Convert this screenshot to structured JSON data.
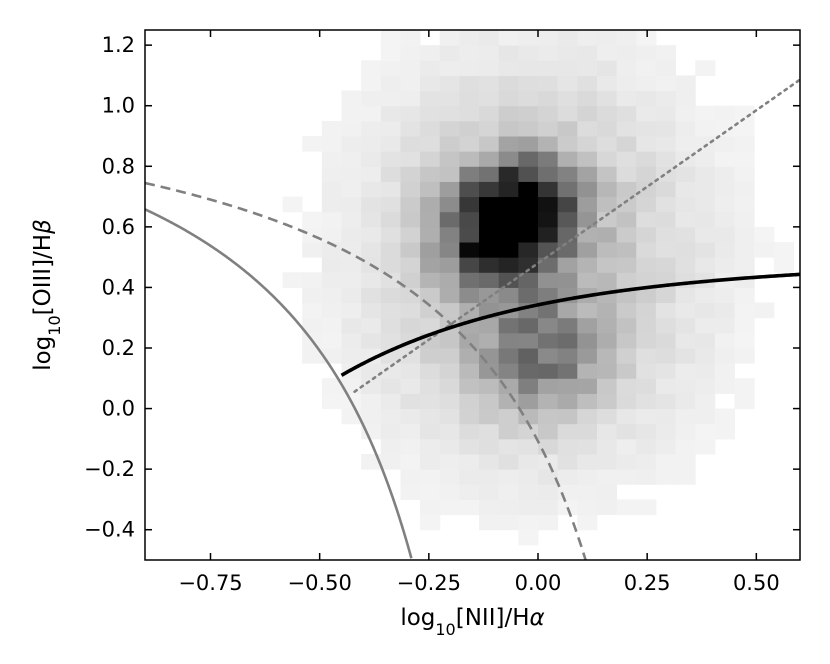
{
  "chart_data": {
    "type": "heatmap",
    "title": "",
    "xlabel": {
      "prefix": "log",
      "sub": "10",
      "suffix": "[NII]/H",
      "greek": "α"
    },
    "ylabel": {
      "prefix": "log",
      "sub": "10",
      "suffix": "[OIII]/H",
      "greek": "β"
    },
    "xlim": [
      -0.9,
      0.6
    ],
    "ylim": [
      -0.5,
      1.25
    ],
    "xticks": [
      -0.75,
      -0.5,
      -0.25,
      0.0,
      0.25,
      0.5
    ],
    "xtick_labels": [
      "−0.75",
      "−0.50",
      "−0.25",
      "0.00",
      "0.25",
      "0.50"
    ],
    "yticks": [
      -0.4,
      -0.2,
      0.0,
      0.2,
      0.4,
      0.6,
      0.8,
      1.0,
      1.2
    ],
    "ytick_labels": [
      "−0.4",
      "−0.2",
      "0.0",
      "0.2",
      "0.4",
      "0.6",
      "0.8",
      "1.0",
      "1.2"
    ],
    "grid": false,
    "colormap": "Greys",
    "histogram": {
      "bin_width_x": 0.045,
      "bin_width_y": 0.05,
      "peak_x": -0.08,
      "peak_y": 0.58,
      "notes_on_density": "2D histogram of galaxies; dense core near x≈-0.1, y≈0.6 with a secondary clump near x≈0.0, y≈0.15"
    },
    "series": [
      {
        "curve": "kauffmann",
        "style": "solid",
        "color": "#808080",
        "formula": "0.61/(x-0.05)+1.3",
        "x_range": [
          -0.9,
          -0.29
        ]
      },
      {
        "curve": "kewley",
        "style": "dashed",
        "color": "#808080",
        "formula": "0.61/(x-0.47)+1.19",
        "x_range": [
          -0.9,
          0.11
        ]
      },
      {
        "curve": "liner_divider",
        "style": "dotted",
        "color": "#808080",
        "formula": "1.01*x+0.48",
        "x_range": [
          -0.42,
          0.6
        ]
      },
      {
        "curve": "main_divider",
        "style": "solid",
        "color": "#000000",
        "formula": "sigmoid",
        "x_range": [
          -0.45,
          0.6
        ]
      }
    ]
  }
}
